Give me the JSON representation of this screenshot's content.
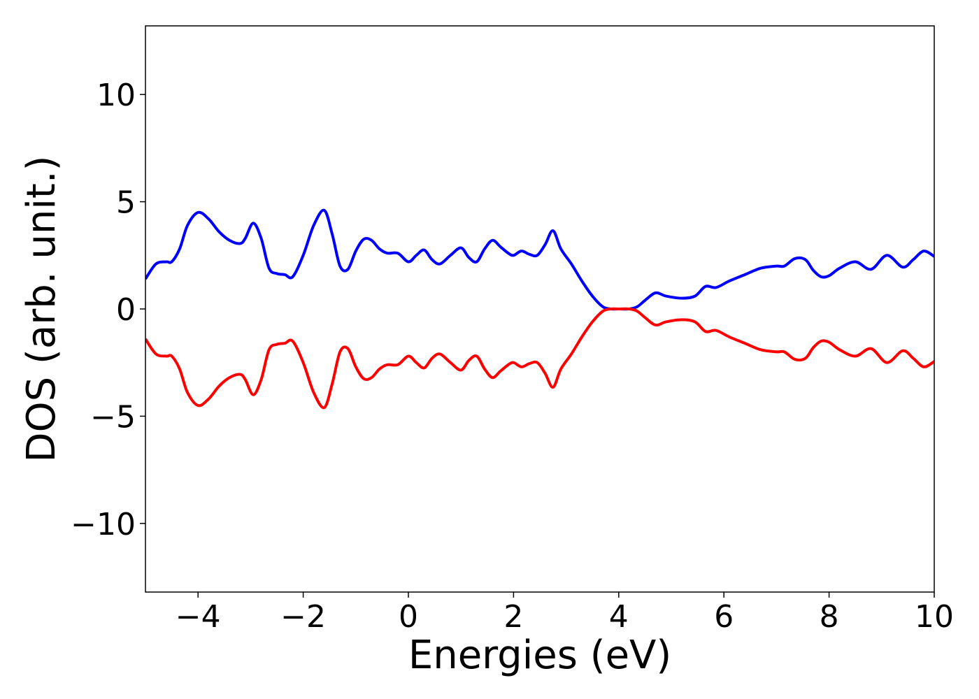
{
  "chart_data": {
    "type": "line",
    "xlabel": "Energies (eV)",
    "ylabel": "DOS (arb. unit.)",
    "xlim": [
      -5,
      10
    ],
    "ylim": [
      -13.2,
      13.2
    ],
    "xticks": [
      -4,
      -2,
      0,
      2,
      4,
      6,
      8,
      10
    ],
    "xtick_labels": [
      "−4",
      "−2",
      "0",
      "2",
      "4",
      "6",
      "8",
      "10"
    ],
    "yticks": [
      -10,
      -5,
      0,
      5,
      10
    ],
    "ytick_labels": [
      "−10",
      "−5",
      "0",
      "5",
      "10"
    ],
    "grid": false,
    "legend": "none",
    "series": [
      {
        "color": "#0000ff",
        "x": [
          -5.0,
          -4.8,
          -4.6,
          -4.5,
          -4.35,
          -4.2,
          -4.0,
          -3.8,
          -3.6,
          -3.4,
          -3.2,
          -3.1,
          -2.95,
          -2.8,
          -2.65,
          -2.5,
          -2.35,
          -2.2,
          -2.0,
          -1.8,
          -1.6,
          -1.45,
          -1.3,
          -1.15,
          -1.0,
          -0.85,
          -0.7,
          -0.55,
          -0.4,
          -0.2,
          0.0,
          0.15,
          0.3,
          0.45,
          0.6,
          0.8,
          1.0,
          1.15,
          1.3,
          1.45,
          1.6,
          1.75,
          1.9,
          2.0,
          2.15,
          2.3,
          2.45,
          2.6,
          2.75,
          2.9,
          3.1,
          3.3,
          3.5,
          3.7,
          3.85,
          4.0,
          4.2,
          4.35,
          4.5,
          4.7,
          4.9,
          5.2,
          5.45,
          5.65,
          5.85,
          6.1,
          6.4,
          6.7,
          7.0,
          7.15,
          7.35,
          7.55,
          7.7,
          7.85,
          8.0,
          8.2,
          8.5,
          8.8,
          9.1,
          9.4,
          9.6,
          9.8,
          10.0
        ],
        "y": [
          1.4,
          2.1,
          2.2,
          2.2,
          2.8,
          3.9,
          4.5,
          4.2,
          3.6,
          3.2,
          3.05,
          3.3,
          4.0,
          3.3,
          1.9,
          1.65,
          1.6,
          1.5,
          2.5,
          3.9,
          4.6,
          3.5,
          2.0,
          1.85,
          2.7,
          3.25,
          3.2,
          2.8,
          2.6,
          2.6,
          2.2,
          2.5,
          2.75,
          2.3,
          2.1,
          2.5,
          2.85,
          2.4,
          2.2,
          2.8,
          3.2,
          2.9,
          2.6,
          2.5,
          2.7,
          2.55,
          2.5,
          3.0,
          3.65,
          2.8,
          2.1,
          1.3,
          0.6,
          0.1,
          0.0,
          0.0,
          0.0,
          0.1,
          0.4,
          0.75,
          0.6,
          0.5,
          0.6,
          1.05,
          1.0,
          1.3,
          1.6,
          1.9,
          2.0,
          2.0,
          2.35,
          2.3,
          1.8,
          1.5,
          1.55,
          1.9,
          2.2,
          1.85,
          2.5,
          1.95,
          2.3,
          2.7,
          2.45
        ]
      },
      {
        "color": "#ff0000",
        "x": [
          -5.0,
          -4.8,
          -4.6,
          -4.5,
          -4.35,
          -4.2,
          -4.0,
          -3.8,
          -3.6,
          -3.4,
          -3.2,
          -3.1,
          -2.95,
          -2.8,
          -2.65,
          -2.5,
          -2.35,
          -2.2,
          -2.0,
          -1.8,
          -1.6,
          -1.45,
          -1.3,
          -1.15,
          -1.0,
          -0.85,
          -0.7,
          -0.55,
          -0.4,
          -0.2,
          0.0,
          0.15,
          0.3,
          0.45,
          0.6,
          0.8,
          1.0,
          1.15,
          1.3,
          1.45,
          1.6,
          1.75,
          1.9,
          2.0,
          2.15,
          2.3,
          2.45,
          2.6,
          2.75,
          2.9,
          3.1,
          3.3,
          3.5,
          3.7,
          3.85,
          4.0,
          4.2,
          4.35,
          4.5,
          4.7,
          4.9,
          5.2,
          5.45,
          5.65,
          5.85,
          6.1,
          6.4,
          6.7,
          7.0,
          7.15,
          7.35,
          7.55,
          7.7,
          7.85,
          8.0,
          8.2,
          8.5,
          8.8,
          9.1,
          9.4,
          9.6,
          9.8,
          10.0
        ],
        "y": [
          -1.4,
          -2.1,
          -2.2,
          -2.2,
          -2.8,
          -3.9,
          -4.5,
          -4.2,
          -3.6,
          -3.2,
          -3.05,
          -3.3,
          -4.0,
          -3.3,
          -1.9,
          -1.65,
          -1.6,
          -1.5,
          -2.5,
          -3.9,
          -4.6,
          -3.5,
          -2.0,
          -1.85,
          -2.7,
          -3.25,
          -3.2,
          -2.8,
          -2.6,
          -2.6,
          -2.2,
          -2.5,
          -2.75,
          -2.3,
          -2.1,
          -2.5,
          -2.85,
          -2.4,
          -2.2,
          -2.8,
          -3.2,
          -2.9,
          -2.6,
          -2.5,
          -2.7,
          -2.55,
          -2.5,
          -3.0,
          -3.65,
          -2.8,
          -2.1,
          -1.3,
          -0.6,
          -0.1,
          0.0,
          0.0,
          0.0,
          -0.1,
          -0.4,
          -0.75,
          -0.6,
          -0.5,
          -0.6,
          -1.05,
          -1.0,
          -1.3,
          -1.6,
          -1.9,
          -2.0,
          -2.0,
          -2.35,
          -2.3,
          -1.8,
          -1.5,
          -1.55,
          -1.9,
          -2.2,
          -1.85,
          -2.5,
          -1.95,
          -2.3,
          -2.7,
          -2.45
        ]
      }
    ]
  }
}
